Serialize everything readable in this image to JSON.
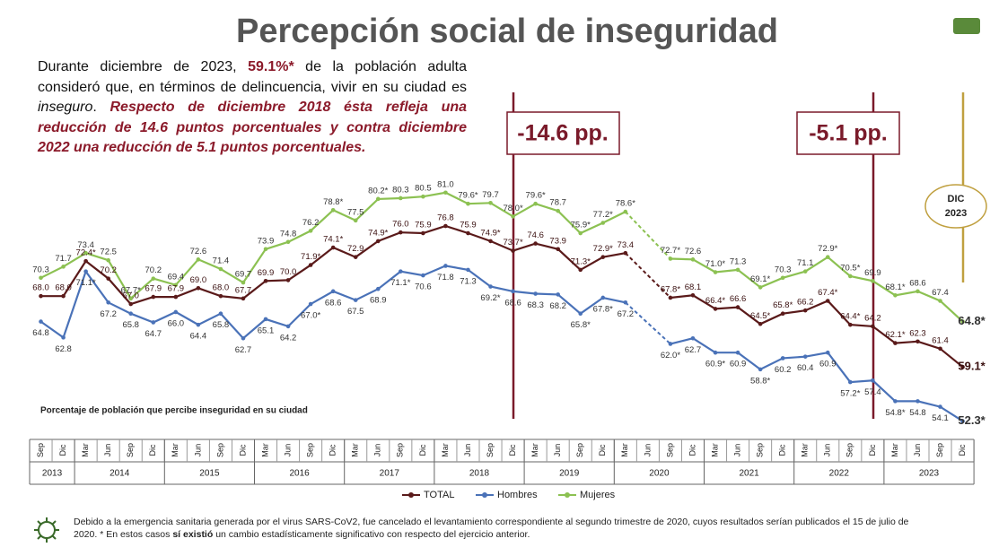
{
  "header": {
    "title": "Percepción social de inseguridad"
  },
  "intro": {
    "part1": "Durante diciembre de 2023, ",
    "highlight": "59.1%*",
    "part2": " de la población adulta consideró que, en términos de delincuencia, vivir en su ciudad es ",
    "italic": "inseguro",
    "part3": ". ",
    "emphasis": "Respecto de diciembre 2018 ésta refleja una reducción de 14.6 puntos porcentuales y contra diciembre 2022 una reducción de 5.1 puntos porcentuales."
  },
  "chart_data": {
    "type": "line",
    "note": "Porcentaje de población que percibe inseguridad en su ciudad",
    "annotations": [
      "-14.6 pp.",
      "-5.1 pp."
    ],
    "badge": [
      "DIC",
      "2023"
    ],
    "categories": [
      "Sep",
      "Dic",
      "Mar",
      "Jun",
      "Sep",
      "Dic",
      "Mar",
      "Jun",
      "Sep",
      "Dic",
      "Mar",
      "Jun",
      "Sep",
      "Dic",
      "Mar",
      "Jun",
      "Sep",
      "Dic",
      "Mar",
      "Jun",
      "Sep",
      "Dic",
      "Mar",
      "Jun",
      "Sep",
      "Dic",
      "Mar",
      "Jun",
      "Sep",
      "Dic",
      "Mar",
      "Jun",
      "Sep",
      "Dic",
      "Mar",
      "Jun",
      "Sep",
      "Dic",
      "Mar",
      "Jun",
      "Sep",
      "Dic"
    ],
    "years": [
      "2013",
      "2014",
      "2015",
      "2016",
      "2017",
      "2018",
      "2019",
      "2020",
      "2021",
      "2022",
      "2023"
    ],
    "ylim": [
      50,
      83
    ],
    "series": [
      {
        "name": "TOTAL",
        "color": "#5a1a1a",
        "values": [
          68.0,
          68.0,
          72.4,
          70.2,
          67.0,
          67.9,
          67.9,
          69.0,
          68.0,
          67.7,
          69.9,
          70.0,
          71.9,
          74.1,
          72.9,
          74.9,
          76.0,
          75.9,
          76.8,
          75.9,
          74.9,
          73.7,
          74.6,
          73.9,
          71.3,
          72.9,
          73.4,
          null,
          67.8,
          68.1,
          66.4,
          66.6,
          64.5,
          65.8,
          66.2,
          67.4,
          64.4,
          64.2,
          62.1,
          62.3,
          61.4,
          59.1
        ],
        "value_labels": [
          "68.0",
          "68.0",
          "72.4*",
          "70.2",
          "67.0",
          "67.9",
          "67.9",
          "69.0",
          "68.0",
          "67.7",
          "69.9",
          "70.0",
          "71.9*",
          "74.1*",
          "72.9",
          "74.9*",
          "76.0",
          "75.9",
          "76.8",
          "75.9",
          "74.9*",
          "73.7*",
          "74.6",
          "73.9",
          "71.3*",
          "72.9*",
          "73.4",
          null,
          "67.8*",
          "68.1",
          "66.4*",
          "66.6",
          "64.5*",
          "65.8*",
          "66.2",
          "67.4*",
          "64.4*",
          "64.2",
          "62.1*",
          "62.3",
          "61.4",
          "59.1*"
        ]
      },
      {
        "name": "Hombres",
        "color": "#4a72b8",
        "values": [
          64.8,
          62.8,
          71.1,
          67.2,
          65.8,
          64.7,
          66.0,
          64.4,
          65.8,
          62.7,
          65.1,
          64.2,
          67.0,
          68.6,
          67.5,
          68.9,
          71.1,
          70.6,
          71.8,
          71.3,
          69.2,
          68.6,
          68.3,
          68.2,
          65.8,
          67.8,
          67.2,
          null,
          62.0,
          62.7,
          60.9,
          60.9,
          58.8,
          60.2,
          60.4,
          60.9,
          57.2,
          57.4,
          54.8,
          54.8,
          54.1,
          52.3
        ],
        "value_labels": [
          "64.8",
          "62.8",
          "71.1*",
          "67.2",
          "65.8",
          "64.7",
          "66.0",
          "64.4",
          "65.8",
          "62.7",
          "65.1",
          "64.2",
          "67.0*",
          "68.6",
          "67.5",
          "68.9",
          "71.1*",
          "70.6",
          "71.8",
          "71.3",
          "69.2*",
          "68.6",
          "68.3",
          "68.2",
          "65.8*",
          "67.8*",
          "67.2",
          null,
          "62.0*",
          "62.7",
          "60.9*",
          "60.9",
          "58.8*",
          "60.2",
          "60.4",
          "60.9",
          "57.2*",
          "57.4",
          "54.8*",
          "54.8",
          "54.1",
          "52.3*"
        ]
      },
      {
        "name": "Mujeres",
        "color": "#8cc152",
        "values": [
          70.3,
          71.7,
          73.4,
          72.5,
          67.7,
          70.2,
          69.4,
          72.6,
          71.4,
          69.7,
          73.9,
          74.8,
          76.2,
          78.8,
          77.5,
          80.2,
          80.3,
          80.5,
          81.0,
          79.6,
          79.7,
          78.0,
          79.6,
          78.7,
          75.9,
          77.2,
          78.6,
          null,
          72.7,
          72.6,
          71.0,
          71.3,
          69.1,
          70.3,
          71.1,
          72.9,
          70.5,
          69.9,
          68.1,
          68.6,
          67.4,
          64.8
        ],
        "value_labels": [
          "70.3",
          "71.7",
          "73.4",
          "72.5",
          "67.7*",
          "70.2",
          "69.4",
          "72.6",
          "71.4",
          "69.7",
          "73.9",
          "74.8",
          "76.2",
          "78.8*",
          "77.5",
          "80.2*",
          "80.3",
          "80.5",
          "81.0",
          "79.6*",
          "79.7",
          "78.0*",
          "79.6*",
          "78.7",
          "75.9*",
          "77.2*",
          "78.6*",
          null,
          "72.7*",
          "72.6",
          "71.0*",
          "71.3",
          "69.1*",
          "70.3",
          "71.1",
          "72.9*",
          "70.5*",
          "69.9",
          "68.1*",
          "68.6",
          "67.4",
          "64.8*"
        ]
      }
    ]
  },
  "footnote": {
    "part1": "Debido a la emergencia sanitaria generada por el virus SARS-CoV2, fue cancelado el levantamiento correspondiente al segundo trimestre de 2020, cuyos resultados serían publicados el 15 de julio de 2020. * En estos casos ",
    "bold": "sí existió",
    "part2": " un cambio estadísticamente significativo con respecto del ejercicio anterior."
  }
}
